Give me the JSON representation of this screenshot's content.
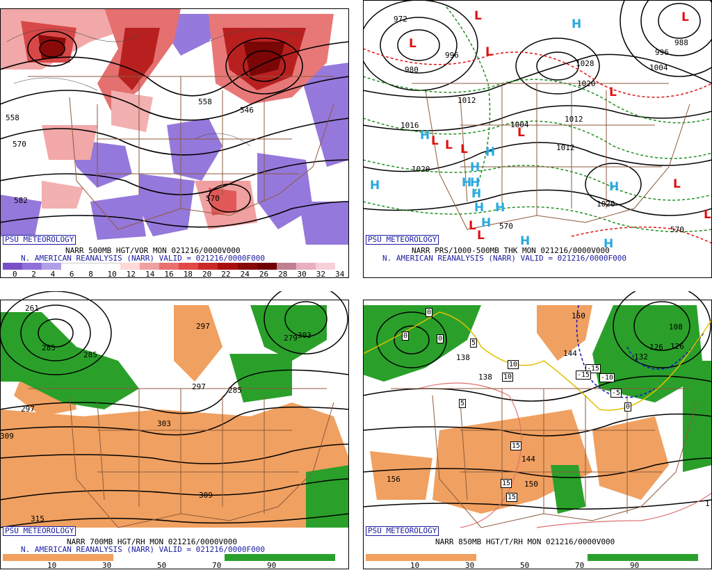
{
  "psu_label": "PSU METEOROLOGY",
  "panels": {
    "p1": {
      "title1": "NARR 500MB HGT/VOR MON 021216/0000V000",
      "title2": "N. AMERICAN REANALYSIS (NARR) VALID = 021216/0000F000",
      "colorbar_labels": [
        "0",
        "2",
        "4",
        "6",
        "8",
        "10",
        "12",
        "14",
        "16",
        "18",
        "20",
        "22",
        "24",
        "26",
        "28",
        "30",
        "32",
        "34"
      ],
      "colorbar_colors": [
        "#7a50c8",
        "#9070d8",
        "#b0a0e8",
        "#ffffff",
        "#ffffff",
        "#ffffff",
        "#ffd8d8",
        "#f0a0a0",
        "#e87070",
        "#e04848",
        "#c82828",
        "#a81010",
        "#880808",
        "#700000",
        "#c08090",
        "#e8b0c0",
        "#f8d0d8"
      ],
      "contour_labels": [
        "558",
        "570",
        "582",
        "558",
        "546",
        "570"
      ]
    },
    "p2": {
      "title1": "NARR PRS/1000-500MB THK MON 021216/0000V000",
      "title2": "N. AMERICAN REANALYSIS (NARR) VALID = 021216/0000F000",
      "contour_labels": [
        "972",
        "980",
        "996",
        "1012",
        "1016",
        "1020",
        "1004",
        "1012",
        "1012",
        "1020",
        "1028",
        "1020",
        "1004",
        "996",
        "988",
        "570",
        "570"
      ],
      "highs": 14,
      "lows": 13
    },
    "p3": {
      "title1": "NARR 700MB HGT/RH MON 021216/0000V000",
      "title2": "N. AMERICAN REANALYSIS (NARR) VALID = 021216/0000F000",
      "colorbar_labels": [
        "10",
        "30",
        "50",
        "70",
        "90"
      ],
      "contour_labels": [
        "261",
        "285",
        "285",
        "297",
        "297",
        "297",
        "285",
        "279",
        "303",
        "309",
        "309",
        "315",
        "303"
      ]
    },
    "p4": {
      "title1": "NARR 850MB HGT/T/RH MON 021216/0000V000",
      "colorbar_labels": [
        "10",
        "30",
        "50",
        "70",
        "90"
      ],
      "contour_labels": [
        "150",
        "144",
        "138",
        "138",
        "144",
        "150",
        "156",
        "132",
        "126",
        "126",
        "108",
        "1"
      ],
      "temp_boxes": [
        "0",
        "0",
        "0",
        "5",
        "5",
        "10",
        "10",
        "15",
        "15",
        "15",
        "-15",
        "-15",
        "-10",
        "-5",
        "0"
      ]
    }
  },
  "colors": {
    "orange": "#f0a060",
    "green": "#2aa02a",
    "purple": "#8060d0",
    "red": "#c82828",
    "border": "#8b5a3c"
  }
}
